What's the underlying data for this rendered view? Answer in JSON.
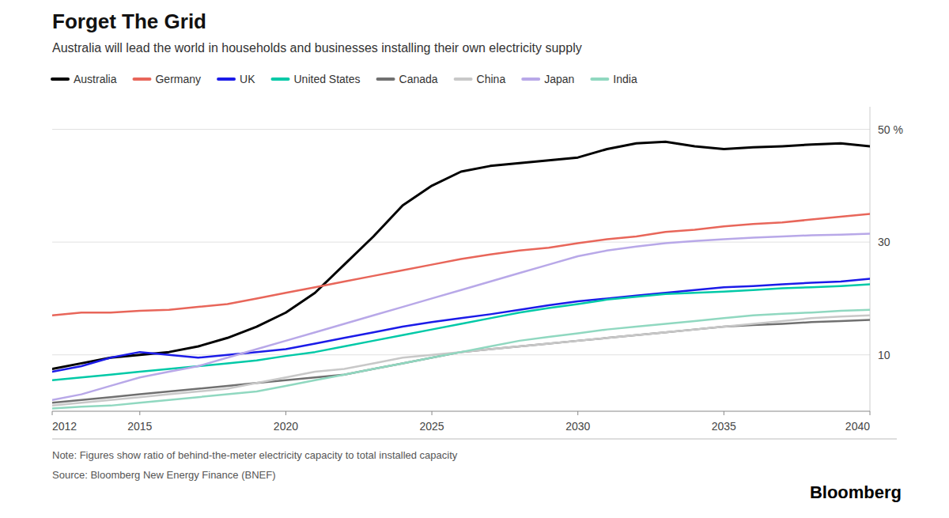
{
  "chart_data": {
    "type": "line",
    "title": "Forget The Grid",
    "subtitle": "Australia will lead the world in households and businesses installing their own electricity supply",
    "annotations": [
      "Note: Figures show ratio of behind-the-meter electricity capacity to total installed capacity",
      "Source: Bloomberg New Energy Finance (BNEF)",
      "Bloomberg"
    ],
    "x": [
      2012,
      2013,
      2014,
      2015,
      2016,
      2017,
      2018,
      2019,
      2020,
      2021,
      2022,
      2023,
      2024,
      2025,
      2026,
      2027,
      2028,
      2029,
      2030,
      2031,
      2032,
      2033,
      2034,
      2035,
      2036,
      2037,
      2038,
      2039,
      2040
    ],
    "series": [
      {
        "name": "Australia",
        "color": "#000000",
        "values": [
          7.5,
          8.5,
          9.5,
          10.0,
          10.5,
          11.5,
          13.0,
          15.0,
          17.5,
          21.0,
          26.0,
          31.0,
          36.5,
          40.0,
          42.5,
          43.5,
          44.0,
          44.5,
          45.0,
          46.5,
          47.5,
          47.8,
          47.0,
          46.5,
          46.8,
          47.0,
          47.3,
          47.5,
          47.0
        ]
      },
      {
        "name": "Germany",
        "color": "#E8665A",
        "values": [
          17.0,
          17.5,
          17.5,
          17.8,
          18.0,
          18.5,
          19.0,
          20.0,
          21.0,
          22.0,
          23.0,
          24.0,
          25.0,
          26.0,
          27.0,
          27.8,
          28.5,
          29.0,
          29.8,
          30.5,
          31.0,
          31.8,
          32.2,
          32.8,
          33.2,
          33.5,
          34.0,
          34.5,
          35.0
        ]
      },
      {
        "name": "UK",
        "color": "#1B1BE8",
        "values": [
          7.0,
          8.0,
          9.5,
          10.5,
          10.0,
          9.5,
          10.0,
          10.5,
          11.0,
          12.0,
          13.0,
          14.0,
          15.0,
          15.8,
          16.5,
          17.2,
          18.0,
          18.8,
          19.5,
          20.0,
          20.5,
          21.0,
          21.5,
          22.0,
          22.2,
          22.5,
          22.8,
          23.0,
          23.5
        ]
      },
      {
        "name": "United States",
        "color": "#00C9A7",
        "values": [
          5.5,
          6.0,
          6.5,
          7.0,
          7.5,
          8.0,
          8.5,
          9.0,
          9.8,
          10.5,
          11.5,
          12.5,
          13.5,
          14.5,
          15.5,
          16.5,
          17.5,
          18.3,
          19.0,
          19.8,
          20.3,
          20.8,
          21.0,
          21.2,
          21.5,
          21.8,
          22.0,
          22.2,
          22.5
        ]
      },
      {
        "name": "Canada",
        "color": "#707070",
        "values": [
          1.5,
          2.0,
          2.5,
          3.0,
          3.5,
          4.0,
          4.5,
          5.0,
          5.5,
          6.0,
          6.5,
          7.5,
          8.5,
          9.5,
          10.5,
          11.0,
          11.5,
          12.0,
          12.5,
          13.0,
          13.5,
          14.0,
          14.5,
          15.0,
          15.3,
          15.5,
          15.8,
          16.0,
          16.2
        ]
      },
      {
        "name": "China",
        "color": "#C8C8C8",
        "values": [
          1.0,
          1.5,
          2.0,
          2.5,
          3.0,
          3.5,
          4.0,
          5.0,
          6.0,
          7.0,
          7.5,
          8.5,
          9.5,
          10.0,
          10.5,
          11.0,
          11.5,
          12.0,
          12.5,
          13.0,
          13.5,
          14.0,
          14.5,
          15.0,
          15.5,
          16.0,
          16.5,
          16.8,
          17.0
        ]
      },
      {
        "name": "Japan",
        "color": "#B8A8E8",
        "values": [
          2.0,
          3.0,
          4.5,
          6.0,
          7.0,
          8.0,
          9.5,
          11.0,
          12.5,
          14.0,
          15.5,
          17.0,
          18.5,
          20.0,
          21.5,
          23.0,
          24.5,
          26.0,
          27.5,
          28.5,
          29.2,
          29.8,
          30.2,
          30.5,
          30.8,
          31.0,
          31.2,
          31.3,
          31.5
        ]
      },
      {
        "name": "India",
        "color": "#90D8C0",
        "values": [
          0.5,
          0.8,
          1.0,
          1.5,
          2.0,
          2.5,
          3.0,
          3.5,
          4.5,
          5.5,
          6.5,
          7.5,
          8.5,
          9.5,
          10.5,
          11.5,
          12.5,
          13.2,
          13.8,
          14.5,
          15.0,
          15.5,
          16.0,
          16.5,
          17.0,
          17.3,
          17.5,
          17.8,
          18.0
        ]
      }
    ],
    "ylim": [
      0,
      54
    ],
    "yticks": [
      10,
      30,
      {
        "value": 50,
        "label": "50 %"
      }
    ],
    "xlim": [
      2012,
      2040
    ],
    "xticks": [
      2012,
      2015,
      2020,
      2025,
      2030,
      2035,
      2040
    ],
    "grid": true,
    "legend": "top"
  }
}
